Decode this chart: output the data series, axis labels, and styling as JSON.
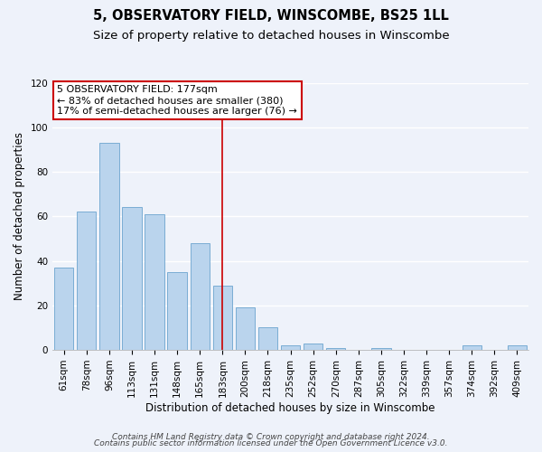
{
  "title": "5, OBSERVATORY FIELD, WINSCOMBE, BS25 1LL",
  "subtitle": "Size of property relative to detached houses in Winscombe",
  "xlabel": "Distribution of detached houses by size in Winscombe",
  "ylabel": "Number of detached properties",
  "bar_labels": [
    "61sqm",
    "78sqm",
    "96sqm",
    "113sqm",
    "131sqm",
    "148sqm",
    "165sqm",
    "183sqm",
    "200sqm",
    "218sqm",
    "235sqm",
    "252sqm",
    "270sqm",
    "287sqm",
    "305sqm",
    "322sqm",
    "339sqm",
    "357sqm",
    "374sqm",
    "392sqm",
    "409sqm"
  ],
  "bar_values": [
    37,
    62,
    93,
    64,
    61,
    35,
    48,
    29,
    19,
    10,
    2,
    3,
    1,
    0,
    1,
    0,
    0,
    0,
    2,
    0,
    2
  ],
  "bar_color": "#bad4ed",
  "bar_edge_color": "#7aadd4",
  "vline_color": "#cc0000",
  "ylim": [
    0,
    120
  ],
  "yticks": [
    0,
    20,
    40,
    60,
    80,
    100,
    120
  ],
  "annotation_line1": "5 OBSERVATORY FIELD: 177sqm",
  "annotation_line2": "← 83% of detached houses are smaller (380)",
  "annotation_line3": "17% of semi-detached houses are larger (76) →",
  "footnote1": "Contains HM Land Registry data © Crown copyright and database right 2024.",
  "footnote2": "Contains public sector information licensed under the Open Government Licence v3.0.",
  "background_color": "#eef2fa",
  "grid_color": "#ffffff",
  "title_fontsize": 10.5,
  "subtitle_fontsize": 9.5,
  "axis_label_fontsize": 8.5,
  "tick_fontsize": 7.5,
  "annotation_fontsize": 8,
  "footnote_fontsize": 6.5
}
